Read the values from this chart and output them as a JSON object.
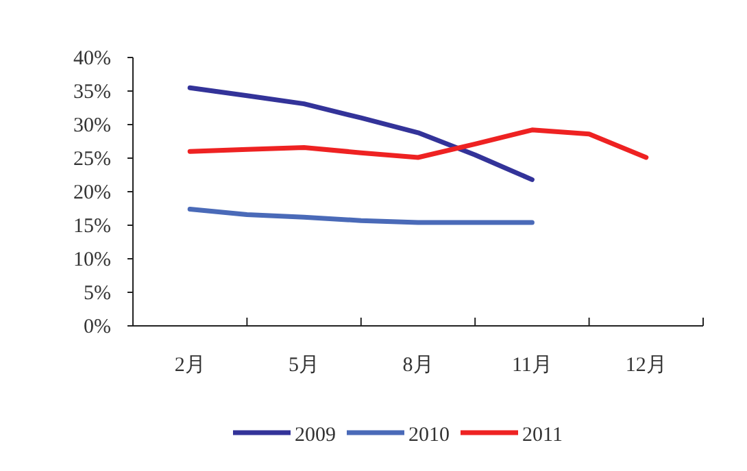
{
  "chart_data": {
    "type": "line",
    "categories": [
      "2月",
      null,
      "5月",
      null,
      "8月",
      null,
      "11月",
      null,
      "12月"
    ],
    "series": [
      {
        "name": "2009",
        "color": "#333399",
        "values": [
          35.5,
          34.3,
          33.1,
          31.0,
          28.8,
          25.5,
          21.8,
          null,
          null
        ]
      },
      {
        "name": "2010",
        "color": "#4a6ab8",
        "values": [
          17.4,
          16.6,
          16.2,
          15.7,
          15.4,
          15.4,
          15.4,
          null,
          null
        ]
      },
      {
        "name": "2011",
        "color": "#ee2222",
        "values": [
          26.0,
          26.3,
          26.6,
          25.8,
          25.1,
          27.1,
          29.2,
          28.6,
          25.1
        ]
      }
    ],
    "ylim": [
      0,
      40
    ],
    "yticks": [
      {
        "value": 0,
        "label": "0%"
      },
      {
        "value": 5,
        "label": "5%"
      },
      {
        "value": 10,
        "label": "10%"
      },
      {
        "value": 15,
        "label": "15%"
      },
      {
        "value": 20,
        "label": "20%"
      },
      {
        "value": 25,
        "label": "25%"
      },
      {
        "value": 30,
        "label": "30%"
      },
      {
        "value": 35,
        "label": "35%"
      },
      {
        "value": 40,
        "label": "40%"
      }
    ],
    "grid": false,
    "legend": "bottom",
    "marker": "none",
    "line_style": "solid"
  }
}
